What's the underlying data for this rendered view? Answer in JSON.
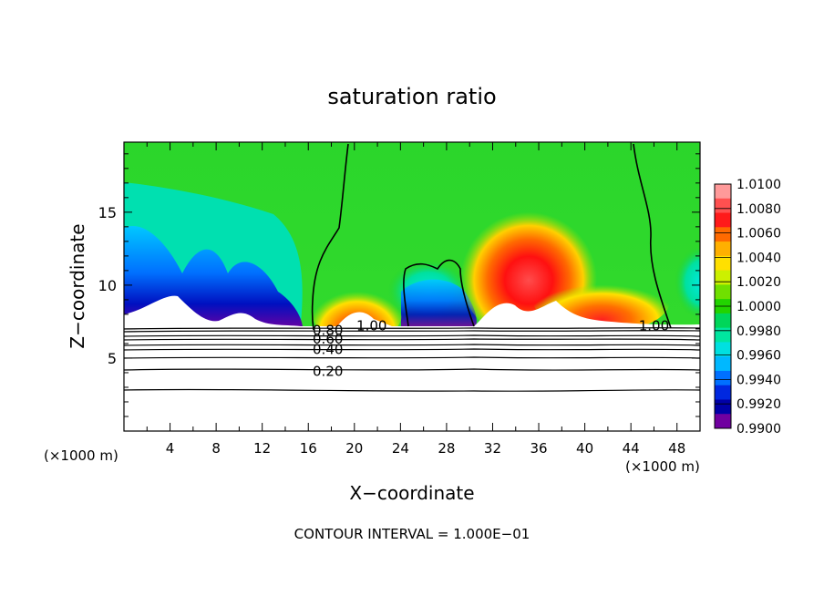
{
  "chart_data": {
    "type": "heatmap",
    "title": "saturation ratio",
    "xlabel": "X−coordinate",
    "ylabel": "Z−coordinate",
    "x_unit_left": "(×1000 m)",
    "x_unit_right": "(×1000 m)",
    "xlim": [
      0,
      50
    ],
    "ylim": [
      0,
      19.8
    ],
    "x_ticks": [
      4,
      8,
      12,
      16,
      20,
      24,
      28,
      32,
      36,
      40,
      44,
      48
    ],
    "y_ticks": [
      5,
      10,
      15
    ],
    "footnote": "CONTOUR INTERVAL = 1.000E−01",
    "colorbar": {
      "labels": [
        "1.0100",
        "1.0080",
        "1.0060",
        "1.0040",
        "1.0020",
        "1.0000",
        "0.9980",
        "0.9960",
        "0.9940",
        "0.9920",
        "0.9900"
      ],
      "colors": [
        "#ff9a9a",
        "#ff5050",
        "#ff1a1a",
        "#ff6a00",
        "#ffb000",
        "#ffe000",
        "#ccf000",
        "#70e000",
        "#22d400",
        "#00d65a",
        "#00e6a0",
        "#00e0e0",
        "#00b8ff",
        "#0070ff",
        "#0028e0",
        "#0000a8",
        "#7000a0"
      ]
    },
    "contour_labels": [
      {
        "text": "1.00",
        "x": 21.5,
        "y": 7.2
      },
      {
        "text": "1.00",
        "x": 46.0,
        "y": 7.2
      },
      {
        "text": "0.80",
        "x": 17.7,
        "y": 6.9
      },
      {
        "text": "0.60",
        "x": 17.7,
        "y": 6.3
      },
      {
        "text": "0.40",
        "x": 17.7,
        "y": 5.6
      },
      {
        "text": "0.20",
        "x": 17.7,
        "y": 4.1
      }
    ]
  }
}
